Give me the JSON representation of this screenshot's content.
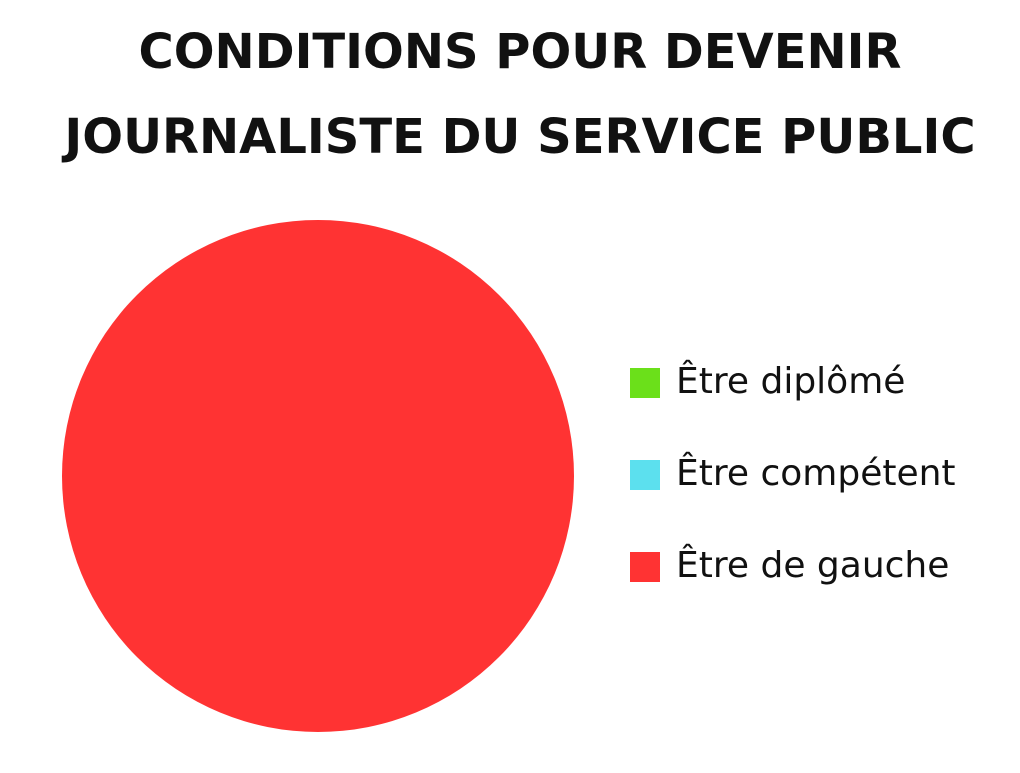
{
  "chart_data": {
    "type": "pie",
    "title": [
      "CONDITIONS POUR DEVENIR",
      "JOURNALISTE DU SERVICE PUBLIC"
    ],
    "categories": [
      "Être diplômé",
      "Être compétent",
      "Être de gauche"
    ],
    "values": [
      0,
      0,
      100
    ],
    "colors": [
      "#6be01a",
      "#5ce0ee",
      "#ff3333"
    ],
    "legend": "right"
  }
}
